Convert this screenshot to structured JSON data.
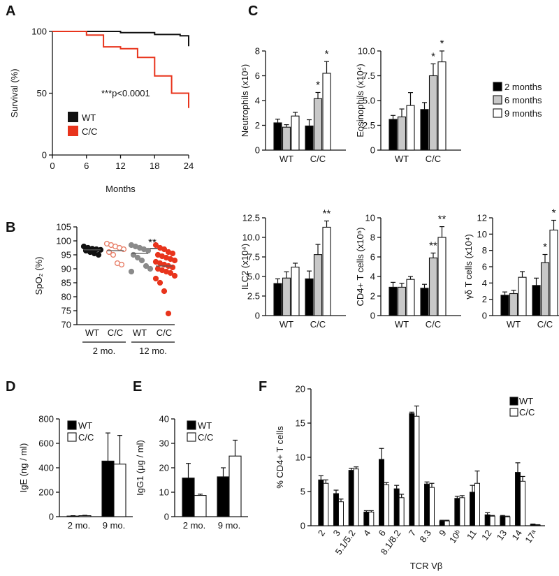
{
  "colors": {
    "wt": "#111111",
    "cc": "#e8341c",
    "bar_wt": "#000000",
    "bar_6": "#c8c8c8",
    "bar_9": "#ffffff",
    "b_wt12": "#8a8a8a",
    "b_cc2": "#e8806a"
  },
  "chart_data": [
    {
      "id": "A",
      "panel_label": "A",
      "type": "line",
      "ylabel": "Survival (%)",
      "xlabel": "Months",
      "xticks": [
        0,
        6,
        12,
        18,
        24
      ],
      "yticks": [
        0,
        50,
        100
      ],
      "xlim": [
        0,
        24
      ],
      "ylim": [
        0,
        100
      ],
      "annotation": "***p<0.0001",
      "legend": {
        "position": "lower-left",
        "entries": [
          "WT",
          "C/C"
        ]
      },
      "series": [
        {
          "name": "WT",
          "color": "#111111",
          "steps": [
            [
              0,
              100
            ],
            [
              12,
              100
            ],
            [
              12,
              99
            ],
            [
              18,
              99
            ],
            [
              18,
              97.5
            ],
            [
              22.5,
              97.5
            ],
            [
              22.5,
              96.5
            ],
            [
              24,
              96.5
            ],
            [
              24,
              88
            ]
          ]
        },
        {
          "name": "C/C",
          "color": "#e8341c",
          "steps": [
            [
              0,
              100
            ],
            [
              6,
              100
            ],
            [
              6,
              97
            ],
            [
              9,
              97
            ],
            [
              9,
              87.5
            ],
            [
              12,
              87.5
            ],
            [
              12,
              86
            ],
            [
              15,
              86
            ],
            [
              15,
              79
            ],
            [
              18,
              79
            ],
            [
              18,
              64
            ],
            [
              21,
              64
            ],
            [
              21,
              50
            ],
            [
              24,
              50
            ],
            [
              24,
              38
            ]
          ]
        }
      ]
    },
    {
      "id": "B",
      "panel_label": "B",
      "type": "scatter",
      "ylabel": "SpO₂ (%)",
      "ylim": [
        70,
        105
      ],
      "yticks": [
        70,
        75,
        80,
        85,
        90,
        95,
        100,
        105
      ],
      "categories": [
        "WT",
        "C/C",
        "WT",
        "C/C"
      ],
      "groups": [
        "2 mo.",
        "12 mo."
      ],
      "significance": "**",
      "series": [
        {
          "name": "WT 2 mo.",
          "color": "#111111",
          "filled": true,
          "mean": 96.8,
          "values": [
            98,
            97.5,
            97.2,
            97,
            96.8,
            96.5,
            96,
            95.5,
            95
          ]
        },
        {
          "name": "C/C 2 mo.",
          "color": "#e8806a",
          "filled": false,
          "mean": 96.5,
          "values": [
            99,
            98.5,
            98,
            97.5,
            97,
            96,
            95,
            92,
            91.5
          ]
        },
        {
          "name": "WT 12 mo.",
          "color": "#8a8a8a",
          "filled": true,
          "mean": 95.5,
          "values": [
            98.5,
            98,
            97.5,
            97,
            96.5,
            95,
            94,
            93,
            91,
            90,
            89
          ]
        },
        {
          "name": "C/C 12 mo.",
          "color": "#e8341c",
          "filled": true,
          "mean": 91,
          "values": [
            98.5,
            97.5,
            97,
            96,
            95.5,
            95,
            94.5,
            94,
            93.5,
            93,
            92.5,
            92,
            91.5,
            91,
            90.5,
            90,
            89.5,
            89,
            88.5,
            87.5,
            86.5,
            85,
            82,
            74
          ]
        }
      ]
    },
    {
      "id": "C1",
      "panel_label": "C",
      "type": "bar",
      "ylabel": "Neutrophils (x10⁵)",
      "ylim": [
        0,
        8
      ],
      "yticks": [
        0,
        2,
        4,
        6,
        8
      ],
      "categories": [
        "WT",
        "C/C"
      ],
      "series": [
        {
          "name": "2 months",
          "values": [
            2.2,
            1.95
          ],
          "errors": [
            0.3,
            0.5
          ]
        },
        {
          "name": "6 months",
          "values": [
            1.85,
            4.15
          ],
          "errors": [
            0.2,
            0.5
          ]
        },
        {
          "name": "9 months",
          "values": [
            2.75,
            6.2
          ],
          "errors": [
            0.3,
            0.95
          ]
        }
      ],
      "stars": [
        {
          "series": 1,
          "category": 1,
          "text": "*"
        },
        {
          "series": 2,
          "category": 1,
          "text": "*"
        }
      ]
    },
    {
      "id": "C2",
      "type": "bar",
      "ylabel": "Eosinophils (x10⁴)",
      "ylim": [
        0,
        10
      ],
      "yticks": [
        0,
        2.5,
        5.0,
        7.5,
        10.0
      ],
      "ytick_labels": [
        "0",
        "2.5",
        "5.0",
        "7.5",
        "10.0"
      ],
      "categories": [
        "WT",
        "C/C"
      ],
      "series": [
        {
          "name": "2 months",
          "values": [
            3.1,
            4.1
          ],
          "errors": [
            0.4,
            0.7
          ]
        },
        {
          "name": "6 months",
          "values": [
            3.35,
            7.5
          ],
          "errors": [
            0.8,
            1.2
          ]
        },
        {
          "name": "9 months",
          "values": [
            4.5,
            8.9
          ],
          "errors": [
            1.3,
            1.1
          ]
        }
      ],
      "stars": [
        {
          "series": 1,
          "category": 1,
          "text": "*"
        },
        {
          "series": 2,
          "category": 1,
          "text": "*"
        }
      ],
      "legend": {
        "position": "right",
        "entries": [
          "2 months",
          "6 months",
          "9 months"
        ]
      }
    },
    {
      "id": "C3",
      "type": "bar",
      "ylabel": "ILC2 (x10⁴)",
      "ylim": [
        0,
        12.5
      ],
      "yticks": [
        0,
        2.5,
        5.0,
        7.5,
        10.0,
        12.5
      ],
      "ytick_labels": [
        "0",
        "2.5",
        "5.0",
        "7.5",
        "10.0",
        "12.5"
      ],
      "categories": [
        "WT",
        "C/C"
      ],
      "series": [
        {
          "name": "2 months",
          "values": [
            4.1,
            4.7
          ],
          "errors": [
            0.6,
            1.0
          ]
        },
        {
          "name": "6 months",
          "values": [
            4.8,
            7.8
          ],
          "errors": [
            0.8,
            1.3
          ]
        },
        {
          "name": "9 months",
          "values": [
            6.2,
            11.3
          ],
          "errors": [
            0.5,
            0.8
          ]
        }
      ],
      "stars": [
        {
          "series": 2,
          "category": 1,
          "text": "**"
        }
      ]
    },
    {
      "id": "C4",
      "type": "bar",
      "ylabel": "CD4+ T cells (x10⁵)",
      "ylim": [
        0,
        10
      ],
      "yticks": [
        0,
        2,
        4,
        6,
        8,
        10
      ],
      "categories": [
        "WT",
        "C/C"
      ],
      "series": [
        {
          "name": "2 months",
          "values": [
            2.9,
            2.8
          ],
          "errors": [
            0.5,
            0.4
          ]
        },
        {
          "name": "6 months",
          "values": [
            2.9,
            5.9
          ],
          "errors": [
            0.4,
            0.5
          ]
        },
        {
          "name": "9 months",
          "values": [
            3.7,
            8.0
          ],
          "errors": [
            0.3,
            1.1
          ]
        }
      ],
      "stars": [
        {
          "series": 1,
          "category": 1,
          "text": "**"
        },
        {
          "series": 2,
          "category": 1,
          "text": "**"
        }
      ]
    },
    {
      "id": "C5",
      "type": "bar",
      "ylabel": "γδ T cells (x10⁴)",
      "ylim": [
        0,
        12
      ],
      "yticks": [
        0,
        2,
        4,
        6,
        8,
        10,
        12
      ],
      "categories": [
        "WT",
        "C/C"
      ],
      "series": [
        {
          "name": "2 months",
          "values": [
            2.5,
            3.7
          ],
          "errors": [
            0.4,
            0.9
          ]
        },
        {
          "name": "6 months",
          "values": [
            2.7,
            6.5
          ],
          "errors": [
            0.4,
            1.0
          ]
        },
        {
          "name": "9 months",
          "values": [
            4.7,
            10.5
          ],
          "errors": [
            0.7,
            1.2
          ]
        }
      ],
      "stars": [
        {
          "series": 1,
          "category": 1,
          "text": "*"
        },
        {
          "series": 2,
          "category": 1,
          "text": "*"
        }
      ]
    },
    {
      "id": "D",
      "panel_label": "D",
      "type": "bar",
      "ylabel": "IgE (ng / ml)",
      "ylim": [
        0,
        800
      ],
      "yticks": [
        0,
        200,
        400,
        600,
        800
      ],
      "categories": [
        "2 mo.",
        "9 mo."
      ],
      "series": [
        {
          "name": "WT",
          "values": [
            5,
            455
          ],
          "errors": [
            3,
            230
          ]
        },
        {
          "name": "C/C",
          "values": [
            8,
            430
          ],
          "errors": [
            3,
            235
          ]
        }
      ],
      "legend": {
        "position": "top-left",
        "entries": [
          "WT",
          "C/C"
        ]
      }
    },
    {
      "id": "E",
      "panel_label": "E",
      "type": "bar",
      "ylabel": "IgG1 (μg / ml)",
      "ylim": [
        0,
        40
      ],
      "yticks": [
        0,
        10,
        20,
        30,
        40
      ],
      "categories": [
        "2 mo.",
        "9 mo."
      ],
      "series": [
        {
          "name": "WT",
          "values": [
            15.8,
            16.3
          ],
          "errors": [
            6.0,
            3.7
          ]
        },
        {
          "name": "C/C",
          "values": [
            8.7,
            24.8
          ],
          "errors": [
            0.5,
            6.5
          ]
        }
      ],
      "legend": {
        "position": "top-left",
        "entries": [
          "WT",
          "C/C"
        ]
      }
    },
    {
      "id": "F",
      "panel_label": "F",
      "type": "bar",
      "ylabel": "% CD4+ T cells",
      "xlabel": "TCR Vβ",
      "ylim": [
        0,
        20
      ],
      "yticks": [
        0,
        5,
        10,
        15,
        20
      ],
      "categories": [
        "2",
        "3",
        "5.1/5.2",
        "4",
        "6",
        "8.1/8.2",
        "7",
        "8.3",
        "9",
        "10ᵇ",
        "11",
        "12",
        "13",
        "14",
        "17ᵃ"
      ],
      "series": [
        {
          "name": "WT",
          "values": [
            6.7,
            4.7,
            8.1,
            2.0,
            9.7,
            5.4,
            16.4,
            6.1,
            0.7,
            4.0,
            4.9,
            1.6,
            1.4,
            7.8,
            0.2
          ],
          "errors": [
            0.6,
            0.5,
            0.3,
            0.2,
            1.6,
            0.5,
            0.2,
            0.3,
            0.1,
            0.3,
            1.0,
            0.3,
            0.1,
            1.4,
            0.05
          ]
        },
        {
          "name": "C/C",
          "values": [
            6.2,
            3.5,
            8.3,
            2.0,
            6.0,
            4.1,
            16.0,
            5.6,
            0.7,
            4.1,
            6.2,
            1.4,
            1.3,
            6.5,
            0.1
          ],
          "errors": [
            0.5,
            0.4,
            0.3,
            0.2,
            0.3,
            0.5,
            1.5,
            0.6,
            0.1,
            0.3,
            1.8,
            0.1,
            0.1,
            0.7,
            0.05
          ]
        }
      ],
      "legend": {
        "position": "top-right",
        "entries": [
          "WT",
          "C/C"
        ]
      }
    }
  ]
}
